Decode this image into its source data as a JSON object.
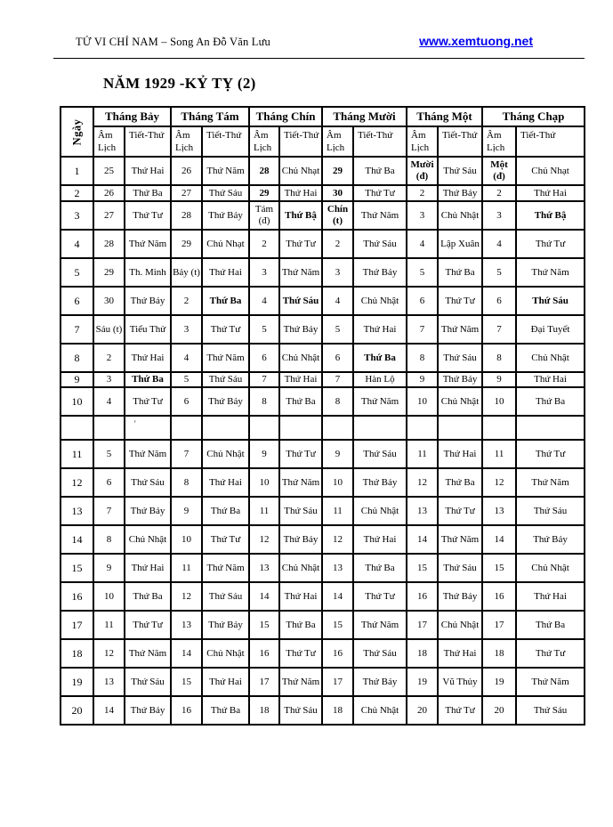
{
  "header": {
    "title": "TỬ VI CHỈ NAM – Song An Đỗ Văn Lưu",
    "link": "www.xemtuong.net"
  },
  "page_title": "NĂM 1929 -KỶ TỴ (2)",
  "colors": {
    "link_blue": "#0000ee",
    "text": "#000000",
    "border": "#000000"
  },
  "table": {
    "day_header": "Ngày",
    "months": [
      {
        "name": "Tháng Bảy",
        "am": "Âm Lịch",
        "tiet": "Tiết-Thứ"
      },
      {
        "name": "Tháng Tám",
        "am": "Âm Lịch",
        "tiet": "Tiết-Thứ"
      },
      {
        "name": "Tháng Chín",
        "am": "Âm Lịch",
        "tiet": "Tiết-Thứ"
      },
      {
        "name": "Tháng Mười",
        "am": "Âm Lịch",
        "tiet": "Tiết-Thứ"
      },
      {
        "name": "Tháng Một",
        "am": "Âm Lịch",
        "tiet": "Tiết-Thứ"
      },
      {
        "name": "Tháng Chạp",
        "am": "Âm Lịch",
        "tiet": "Tiết-Thứ"
      }
    ],
    "rows": [
      {
        "day": "1",
        "cells": [
          {
            "am": "25",
            "tiet": "Thứ Hai"
          },
          {
            "am": "26",
            "tiet": "Thứ Năm"
          },
          {
            "am": "28",
            "amB": 1,
            "tiet": "Chủ Nhạt"
          },
          {
            "am": "29",
            "amB": 1,
            "tiet": "Thứ Ba"
          },
          {
            "am": "Mười (đ)",
            "amB": 1,
            "tiet": "Thứ Sáu"
          },
          {
            "am": "Một (đ)",
            "amB": 1,
            "tiet": "Chủ Nhạt"
          }
        ]
      },
      {
        "day": "2",
        "cells": [
          {
            "am": "26",
            "tiet": "Thứ Ba"
          },
          {
            "am": "27",
            "tiet": "Thứ Sáu"
          },
          {
            "am": "29",
            "amB": 1,
            "tiet": "Thứ Hai"
          },
          {
            "am": "30",
            "amB": 1,
            "tiet": "Thứ Tư",
            "lg": 1
          },
          {
            "am": "2",
            "tiet": "Thứ Bảy"
          },
          {
            "am": "2",
            "tiet": "Thứ Hai"
          }
        ]
      },
      {
        "day": "3",
        "cells": [
          {
            "am": "27",
            "tiet": "Thứ Tư",
            "lg": 1
          },
          {
            "am": "28",
            "tiet": "Thứ Bảy"
          },
          {
            "am": "Tám (đ)",
            "tiet": "Thứ Bậ",
            "tietB": 1
          },
          {
            "am": "Chín (t)",
            "amB": 1,
            "tiet": "Thứ Năm"
          },
          {
            "am": "3",
            "tiet": "Chủ Nhật"
          },
          {
            "am": "3",
            "tiet": "Thứ Bậ",
            "tietB": 1
          }
        ]
      },
      {
        "day": "4",
        "cells": [
          {
            "am": "28",
            "tiet": "Thứ Năm"
          },
          {
            "am": "29",
            "tiet": "Chủ Nhạt"
          },
          {
            "am": "2",
            "tiet": "Thứ Tư"
          },
          {
            "am": "2",
            "tiet": "Thứ Sáu"
          },
          {
            "am": "4",
            "tiet": "Lập Xuân"
          },
          {
            "am": "4",
            "tiet": "Thứ Tư"
          }
        ]
      },
      {
        "day": "5",
        "cells": [
          {
            "am": "29",
            "tiet": "Th. Minh"
          },
          {
            "am": "Bảy (t)",
            "tiet": "Thứ Hai"
          },
          {
            "am": "3",
            "tiet": "Thứ Năm"
          },
          {
            "am": "3",
            "tiet": "Thứ Bảy"
          },
          {
            "am": "5",
            "tiet": "Thứ Ba"
          },
          {
            "am": "5",
            "tiet": "Thứ Năm"
          }
        ]
      },
      {
        "day": "6",
        "cells": [
          {
            "am": "30",
            "tiet": "Thứ Bảy"
          },
          {
            "am": "2",
            "tiet": "Thứ Ba",
            "tietB": 1
          },
          {
            "am": "4",
            "tiet": "Thứ Sáu",
            "tietB": 1
          },
          {
            "am": "4",
            "tiet": "Chủ Nhật"
          },
          {
            "am": "6",
            "tiet": "Thứ Tư"
          },
          {
            "am": "6",
            "tiet": "Thứ Sáu",
            "tietB": 1
          }
        ]
      },
      {
        "day": "7",
        "cells": [
          {
            "am": "Sáu (t)",
            "tiet": "Tiểu Thử"
          },
          {
            "am": "3",
            "tiet": "Thứ Tư"
          },
          {
            "am": "5",
            "tiet": "Thứ Bảy"
          },
          {
            "am": "5",
            "tiet": "Thứ Hai"
          },
          {
            "am": "7",
            "tiet": "Thứ Năm"
          },
          {
            "am": "7",
            "tiet": "Đại Tuyết"
          }
        ]
      },
      {
        "day": "8",
        "cells": [
          {
            "am": "2",
            "tiet": "Thứ Hai"
          },
          {
            "am": "4",
            "tiet": "Thứ Năm"
          },
          {
            "am": "6",
            "tiet": "Chủ Nhật"
          },
          {
            "am": "6",
            "tiet": "Thứ Ba",
            "tietB": 1
          },
          {
            "am": "8",
            "tiet": "Thứ Sáu"
          },
          {
            "am": "8",
            "tiet": "Chủ Nhật"
          }
        ]
      },
      {
        "day": "9",
        "cells": [
          {
            "am": "3",
            "tiet": "Thứ Ba",
            "tietB": 1
          },
          {
            "am": "5",
            "tiet": "Thứ Sáu"
          },
          {
            "am": "7",
            "tiet": "Thứ Hai"
          },
          {
            "am": "7",
            "tiet": "Hàn Lộ"
          },
          {
            "am": "9",
            "tiet": "Thứ Bảy"
          },
          {
            "am": "9",
            "tiet": "Thứ Hai"
          }
        ]
      },
      {
        "day": "10",
        "cells": [
          {
            "am": "4",
            "tiet": "Thứ Tư"
          },
          {
            "am": "6",
            "tiet": "Thứ Bảy",
            "lg": 1
          },
          {
            "am": "8",
            "tiet": "Thứ Ba",
            "lg": 1
          },
          {
            "am": "8",
            "tiet": "Thứ Năm"
          },
          {
            "am": "10",
            "tiet": "Chủ Nhật"
          },
          {
            "am": "10",
            "tiet": "Thứ Ba",
            "lg": 1
          }
        ]
      },
      {
        "day": "",
        "cells": [
          {
            "am": "",
            "tiet": "'"
          },
          {
            "am": "",
            "tiet": ""
          },
          {
            "am": "",
            "tiet": ""
          },
          {
            "am": "",
            "tiet": ""
          },
          {
            "am": "",
            "tiet": ""
          },
          {
            "am": "",
            "tiet": ""
          }
        ]
      },
      {
        "day": "11",
        "cells": [
          {
            "am": "5",
            "tiet": "Thứ Năm"
          },
          {
            "am": "7",
            "tiet": "Chủ Nhật"
          },
          {
            "am": "9",
            "tiet": "Thứ Tư"
          },
          {
            "am": "9",
            "tiet": "Thứ Sáu",
            "lg": 1
          },
          {
            "am": "11",
            "tiet": "Thứ Hai"
          },
          {
            "am": "11",
            "tiet": "Thứ Tư"
          }
        ]
      },
      {
        "day": "12",
        "cells": [
          {
            "am": "6",
            "tiet": "Thứ Sáu",
            "lg": 1
          },
          {
            "am": "8",
            "tiet": "Thứ Hai"
          },
          {
            "am": "10",
            "tiet": "Thứ Năm"
          },
          {
            "am": "10",
            "tiet": "Thứ Bảy"
          },
          {
            "am": "12",
            "tiet": "Thứ Ba"
          },
          {
            "am": "12",
            "tiet": "Thứ Năm"
          }
        ]
      },
      {
        "day": "13",
        "cells": [
          {
            "am": "7",
            "tiet": "Thứ Bảy"
          },
          {
            "am": "9",
            "tiet": "Thứ Ba"
          },
          {
            "am": "11",
            "tiet": "Thứ Sáu"
          },
          {
            "am": "11",
            "tiet": "Chủ Nhật"
          },
          {
            "am": "13",
            "tiet": "Thứ Tư"
          },
          {
            "am": "13",
            "tiet": "Thứ Sáu"
          }
        ]
      },
      {
        "day": "14",
        "cells": [
          {
            "am": "8",
            "tiet": "Chủ Nhật"
          },
          {
            "am": "10",
            "tiet": "Thứ Tư"
          },
          {
            "am": "12",
            "tiet": "Thứ Bảy"
          },
          {
            "am": "12",
            "tiet": "Thứ Hai"
          },
          {
            "am": "14",
            "tiet": "Thứ Năm"
          },
          {
            "am": "14",
            "tiet": "Thứ Bảy"
          }
        ]
      },
      {
        "day": "15",
        "cells": [
          {
            "am": "9",
            "tiet": "Thứ Hai"
          },
          {
            "am": "11",
            "tiet": "Thứ Năm"
          },
          {
            "am": "13",
            "tiet": "Chủ Nhật"
          },
          {
            "am": "13",
            "tiet": "Thứ Ba"
          },
          {
            "am": "15",
            "tiet": "Thứ Sáu"
          },
          {
            "am": "15",
            "tiet": "Chủ Nhật"
          }
        ]
      },
      {
        "day": "16",
        "cells": [
          {
            "am": "10",
            "tiet": "Thứ Ba"
          },
          {
            "am": "12",
            "tiet": "Thứ Sáu"
          },
          {
            "am": "14",
            "tiet": "Thứ Hai"
          },
          {
            "am": "14",
            "tiet": "Thứ Tư"
          },
          {
            "am": "16",
            "tiet": "Thứ Bảy"
          },
          {
            "am": "16",
            "tiet": "Thứ Hai"
          }
        ]
      },
      {
        "day": "17",
        "cells": [
          {
            "am": "11",
            "tiet": "Thứ Tư"
          },
          {
            "am": "13",
            "tiet": "Thứ Bảy"
          },
          {
            "am": "15",
            "tiet": "Thứ Ba"
          },
          {
            "am": "15",
            "tiet": "Thứ Năm"
          },
          {
            "am": "17",
            "tiet": "Chủ Nhật"
          },
          {
            "am": "17",
            "tiet": "Thứ Ba"
          }
        ]
      },
      {
        "day": "18",
        "cells": [
          {
            "am": "12",
            "tiet": "Thứ Năm"
          },
          {
            "am": "14",
            "tiet": "Chủ Nhật"
          },
          {
            "am": "16",
            "tiet": "Thứ Tư"
          },
          {
            "am": "16",
            "tiet": "Thứ Sáu"
          },
          {
            "am": "18",
            "tiet": "Thứ Hai"
          },
          {
            "am": "18",
            "tiet": "Thứ Tư"
          }
        ]
      },
      {
        "day": "19",
        "cells": [
          {
            "am": "13",
            "tiet": "Thứ Sáu"
          },
          {
            "am": "15",
            "tiet": "Thứ Hai"
          },
          {
            "am": "17",
            "tiet": "Thứ Năm"
          },
          {
            "am": "17",
            "tiet": "Thứ Bảy"
          },
          {
            "am": "19",
            "tiet": "Vũ Thủy"
          },
          {
            "am": "19",
            "tiet": "Thứ Năm"
          }
        ]
      },
      {
        "day": "20",
        "cells": [
          {
            "am": "14",
            "tiet": "Thứ Bảy"
          },
          {
            "am": "16",
            "tiet": "Thứ Ba"
          },
          {
            "am": "18",
            "tiet": "Thứ Sáu"
          },
          {
            "am": "18",
            "tiet": "Chủ Nhật"
          },
          {
            "am": "20",
            "tiet": "Thứ Tư"
          },
          {
            "am": "20",
            "tiet": "Thứ Sáu"
          }
        ]
      }
    ]
  }
}
